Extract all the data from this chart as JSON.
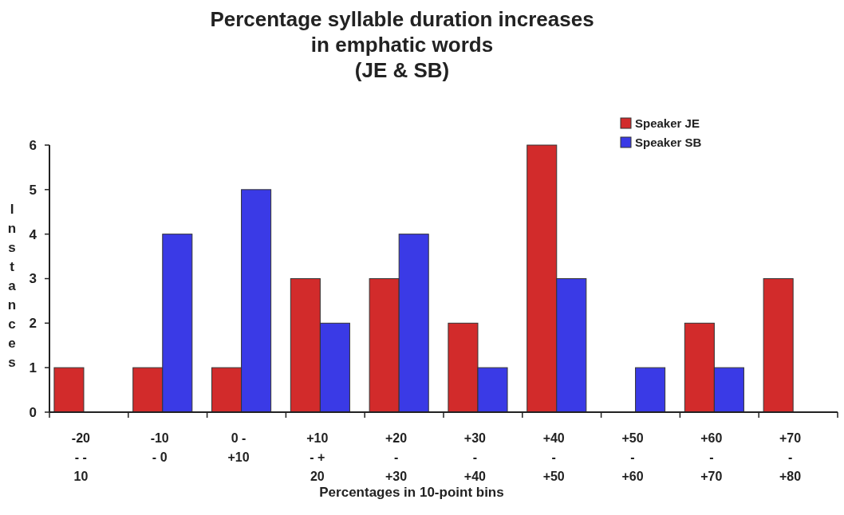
{
  "chart_data": {
    "type": "bar",
    "title": "Percentage syllable duration increases\nin emphatic words\n(JE & SB)",
    "xlabel": "Percentages in 10-point bins",
    "ylabel": "Instances",
    "categories": [
      "-20\n- -\n10",
      "-10\n- 0",
      "0 -\n+10",
      "+10\n- +\n20",
      "+20\n-\n+30",
      "+30\n-\n+40",
      "+40\n-\n+50",
      "+50\n-\n+60",
      "+60\n-\n+70",
      "+70\n-\n+80"
    ],
    "series": [
      {
        "name": "Speaker JE",
        "color": "#d22b2b",
        "values": [
          1,
          1,
          1,
          3,
          3,
          2,
          6,
          0,
          2,
          3
        ]
      },
      {
        "name": "Speaker SB",
        "color": "#3a3ae6",
        "values": [
          0,
          4,
          5,
          2,
          4,
          1,
          3,
          1,
          1,
          0
        ]
      }
    ],
    "ylim": [
      0,
      6
    ],
    "yticks": [
      0,
      1,
      2,
      3,
      4,
      5,
      6
    ],
    "legend": "top right"
  }
}
